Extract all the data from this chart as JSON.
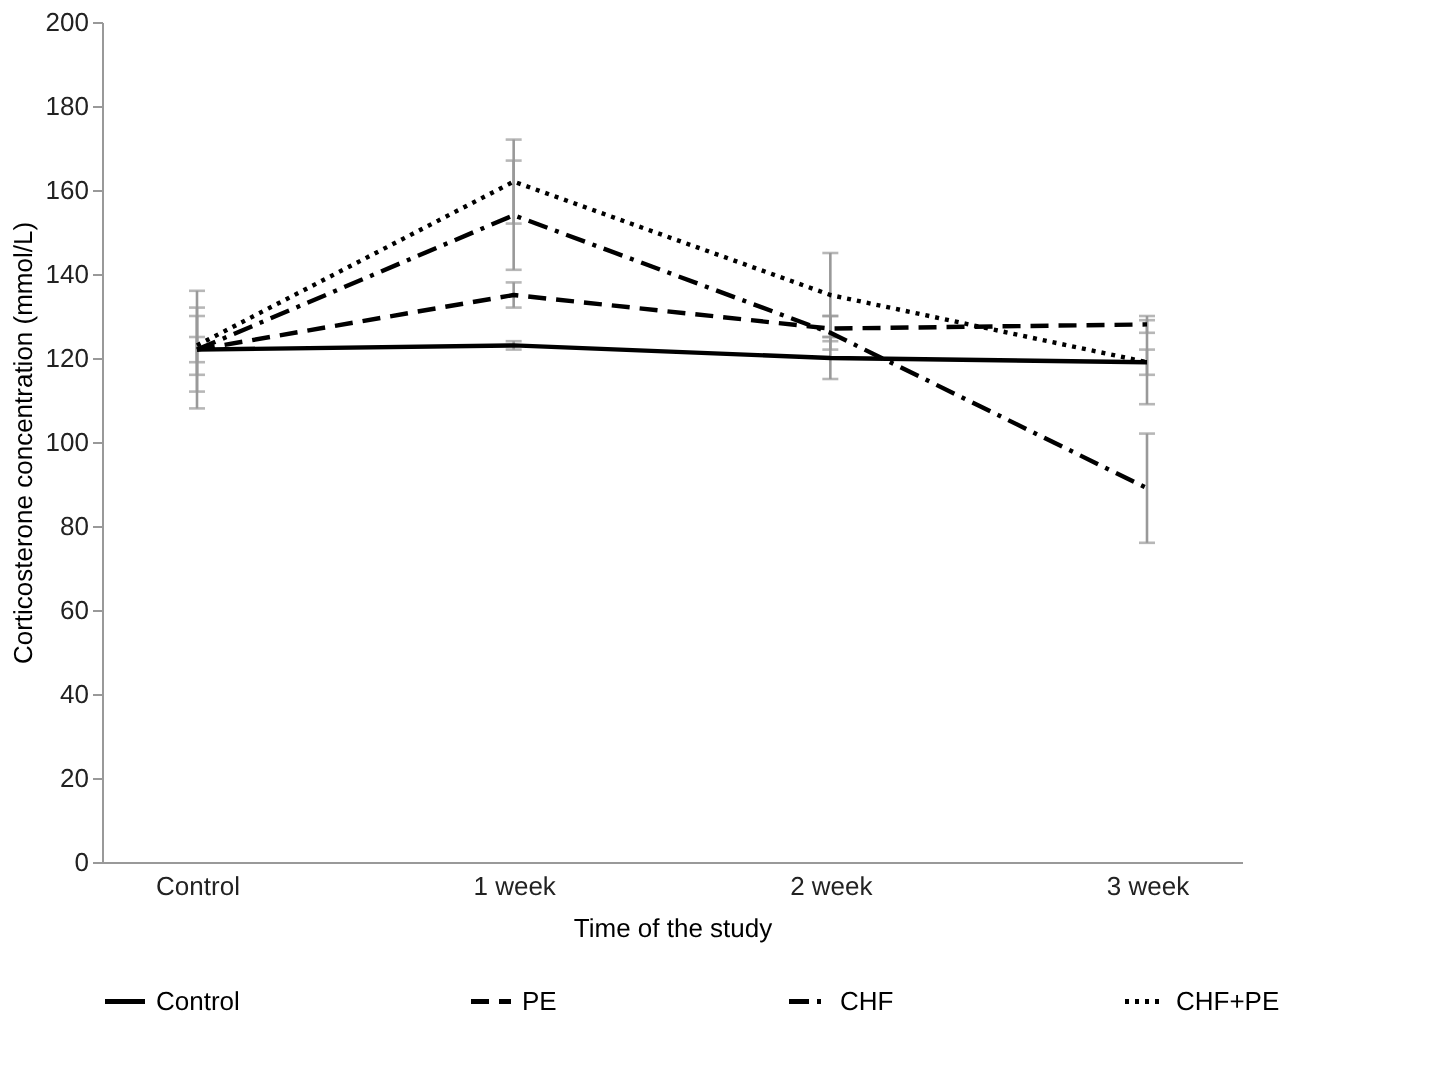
{
  "chart_data": {
    "type": "line",
    "xlabel": "Time of the study",
    "ylabel": "Corticosterone concentration (mmol/L)",
    "categories": [
      "Control",
      "1 week",
      "2 week",
      "3 week"
    ],
    "ylim": [
      0,
      200
    ],
    "yticks": [
      0,
      20,
      40,
      60,
      80,
      100,
      120,
      140,
      160,
      180,
      200
    ],
    "grid": false,
    "legend": "bottom",
    "marker": "none",
    "series": [
      {
        "name": "Control",
        "color": "#000000",
        "line_style": "solid",
        "values": [
          122,
          123,
          120,
          119
        ],
        "errors": [
          3,
          1,
          5,
          3
        ]
      },
      {
        "name": "PE",
        "color": "#000000",
        "line_style": "dashed",
        "values": [
          122,
          135,
          127,
          128
        ],
        "errors": [
          10,
          3,
          3,
          2
        ]
      },
      {
        "name": "CHF",
        "color": "#000000",
        "line_style": "dashdot",
        "values": [
          122,
          154,
          126,
          89
        ],
        "errors": [
          14,
          13,
          4,
          13
        ]
      },
      {
        "name": "CHF+PE",
        "color": "#000000",
        "line_style": "dotted",
        "values": [
          123,
          162,
          135,
          119
        ],
        "errors": [
          7,
          10,
          10,
          10
        ]
      }
    ]
  }
}
